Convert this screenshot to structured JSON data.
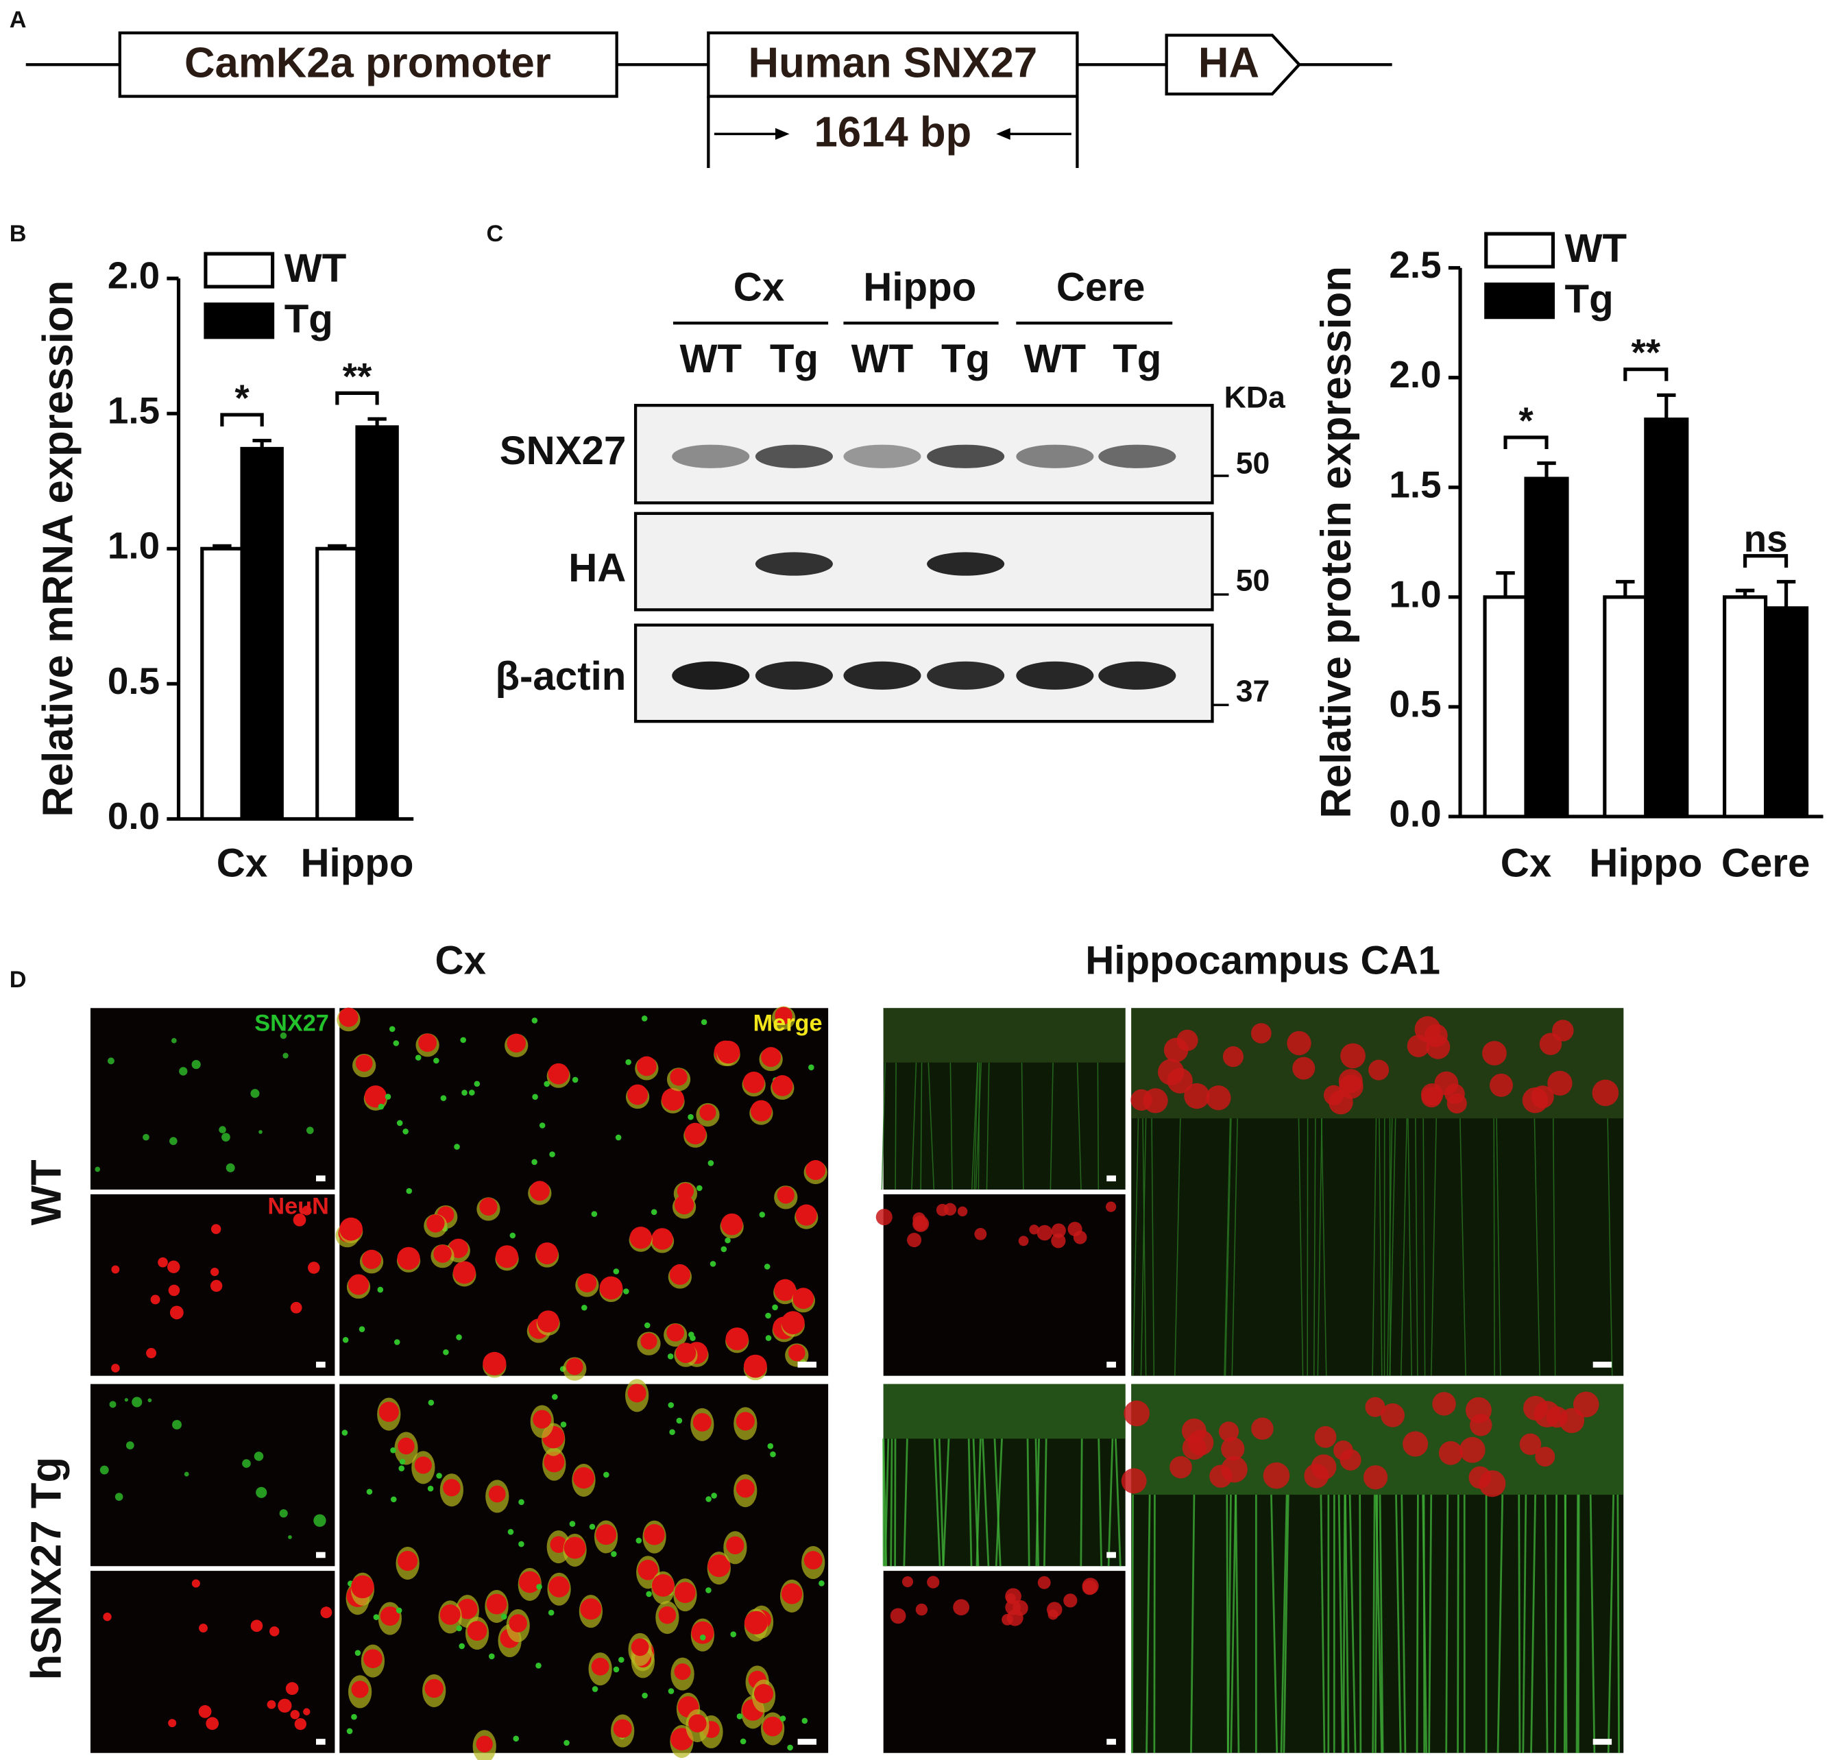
{
  "figure": {
    "panel_labels": [
      "A",
      "B",
      "C",
      "D"
    ]
  },
  "construct": {
    "promoter": "CamK2a promoter",
    "gene": "Human SNX27",
    "tag": "HA",
    "length": "1614 bp"
  },
  "chart_data": [
    {
      "type": "bar",
      "ylabel": "Relative mRNA expression",
      "categories": [
        "Cx",
        "Hippo"
      ],
      "series": [
        {
          "name": "WT",
          "color": "#ffffff",
          "values": [
            1.0,
            1.0
          ],
          "errors": [
            0.01,
            0.01
          ]
        },
        {
          "name": "Tg",
          "color": "#000000",
          "values": [
            1.37,
            1.45
          ],
          "errors": [
            0.03,
            0.03
          ]
        }
      ],
      "annotations": [
        "*",
        "**"
      ],
      "ylim": [
        0,
        2
      ],
      "yticks": [
        {
          "value": 0,
          "label": "0.0"
        },
        0.5,
        {
          "value": 1,
          "label": "1.0"
        },
        1.5,
        {
          "value": 2,
          "label": "2.0"
        }
      ]
    },
    {
      "type": "bar",
      "ylabel": "Relative protein expression",
      "categories": [
        "Cx",
        "Hippo",
        "Cere"
      ],
      "series": [
        {
          "name": "WT",
          "color": "#ffffff",
          "values": [
            1.0,
            1.0,
            1.0
          ],
          "errors": [
            0.11,
            0.07,
            0.03
          ]
        },
        {
          "name": "Tg",
          "color": "#000000",
          "values": [
            1.54,
            1.81,
            0.95
          ],
          "errors": [
            0.07,
            0.11,
            0.12
          ]
        }
      ],
      "annotations": [
        "*",
        "**",
        "ns"
      ],
      "ylim": [
        0,
        2.5
      ],
      "yticks": [
        {
          "value": 0,
          "label": "0.0"
        },
        0.5,
        {
          "value": 1,
          "label": "1.0"
        },
        1.5,
        {
          "value": 2,
          "label": "2.0"
        },
        2.5
      ]
    }
  ],
  "blot": {
    "regions": [
      "Cx",
      "Hippo",
      "Cere"
    ],
    "lanes": [
      "WT",
      "Tg",
      "WT",
      "Tg",
      "WT",
      "Tg"
    ],
    "rows": [
      "SNX27",
      "HA",
      "β-actin"
    ],
    "unit": "KDa",
    "markers": [
      "50",
      "50",
      "37"
    ]
  },
  "micrographs": {
    "regions": [
      "Cx",
      "Hippocampus CA1"
    ],
    "conditions": [
      "WT",
      "hSNX27 Tg"
    ],
    "channels": [
      "SNX27",
      "NeuN",
      "Merge"
    ]
  }
}
